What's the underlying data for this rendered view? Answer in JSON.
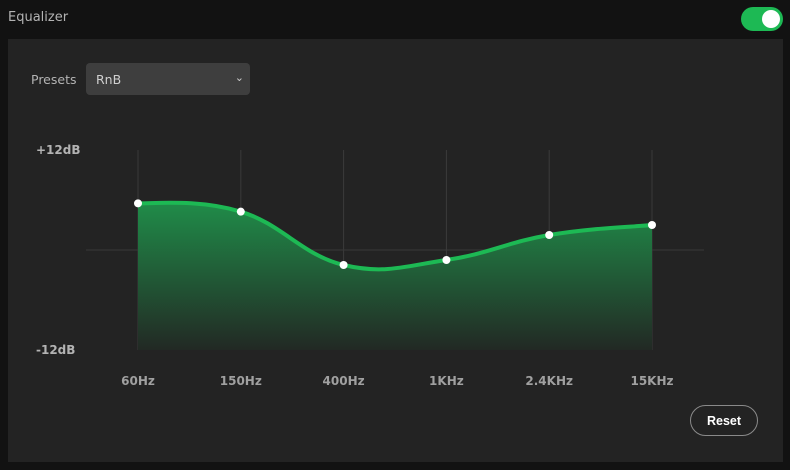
{
  "header": {
    "title": "Equalizer",
    "enabled": true
  },
  "presets": {
    "label": "Presets",
    "selected": "RnB"
  },
  "reset_label": "Reset",
  "colors": {
    "accent": "#1db954",
    "fill_top": "#1f8a47",
    "background": "#121212",
    "panel": "#232323"
  },
  "chart_data": {
    "type": "area",
    "categories": [
      "60Hz",
      "150Hz",
      "400Hz",
      "1KHz",
      "2.4KHz",
      "15KHz"
    ],
    "values": [
      5.6,
      4.6,
      -1.8,
      -1.2,
      1.8,
      3.0
    ],
    "ylim": [
      -12,
      12
    ],
    "ytick_labels": [
      "+12dB",
      "-12dB"
    ],
    "grid": true
  }
}
